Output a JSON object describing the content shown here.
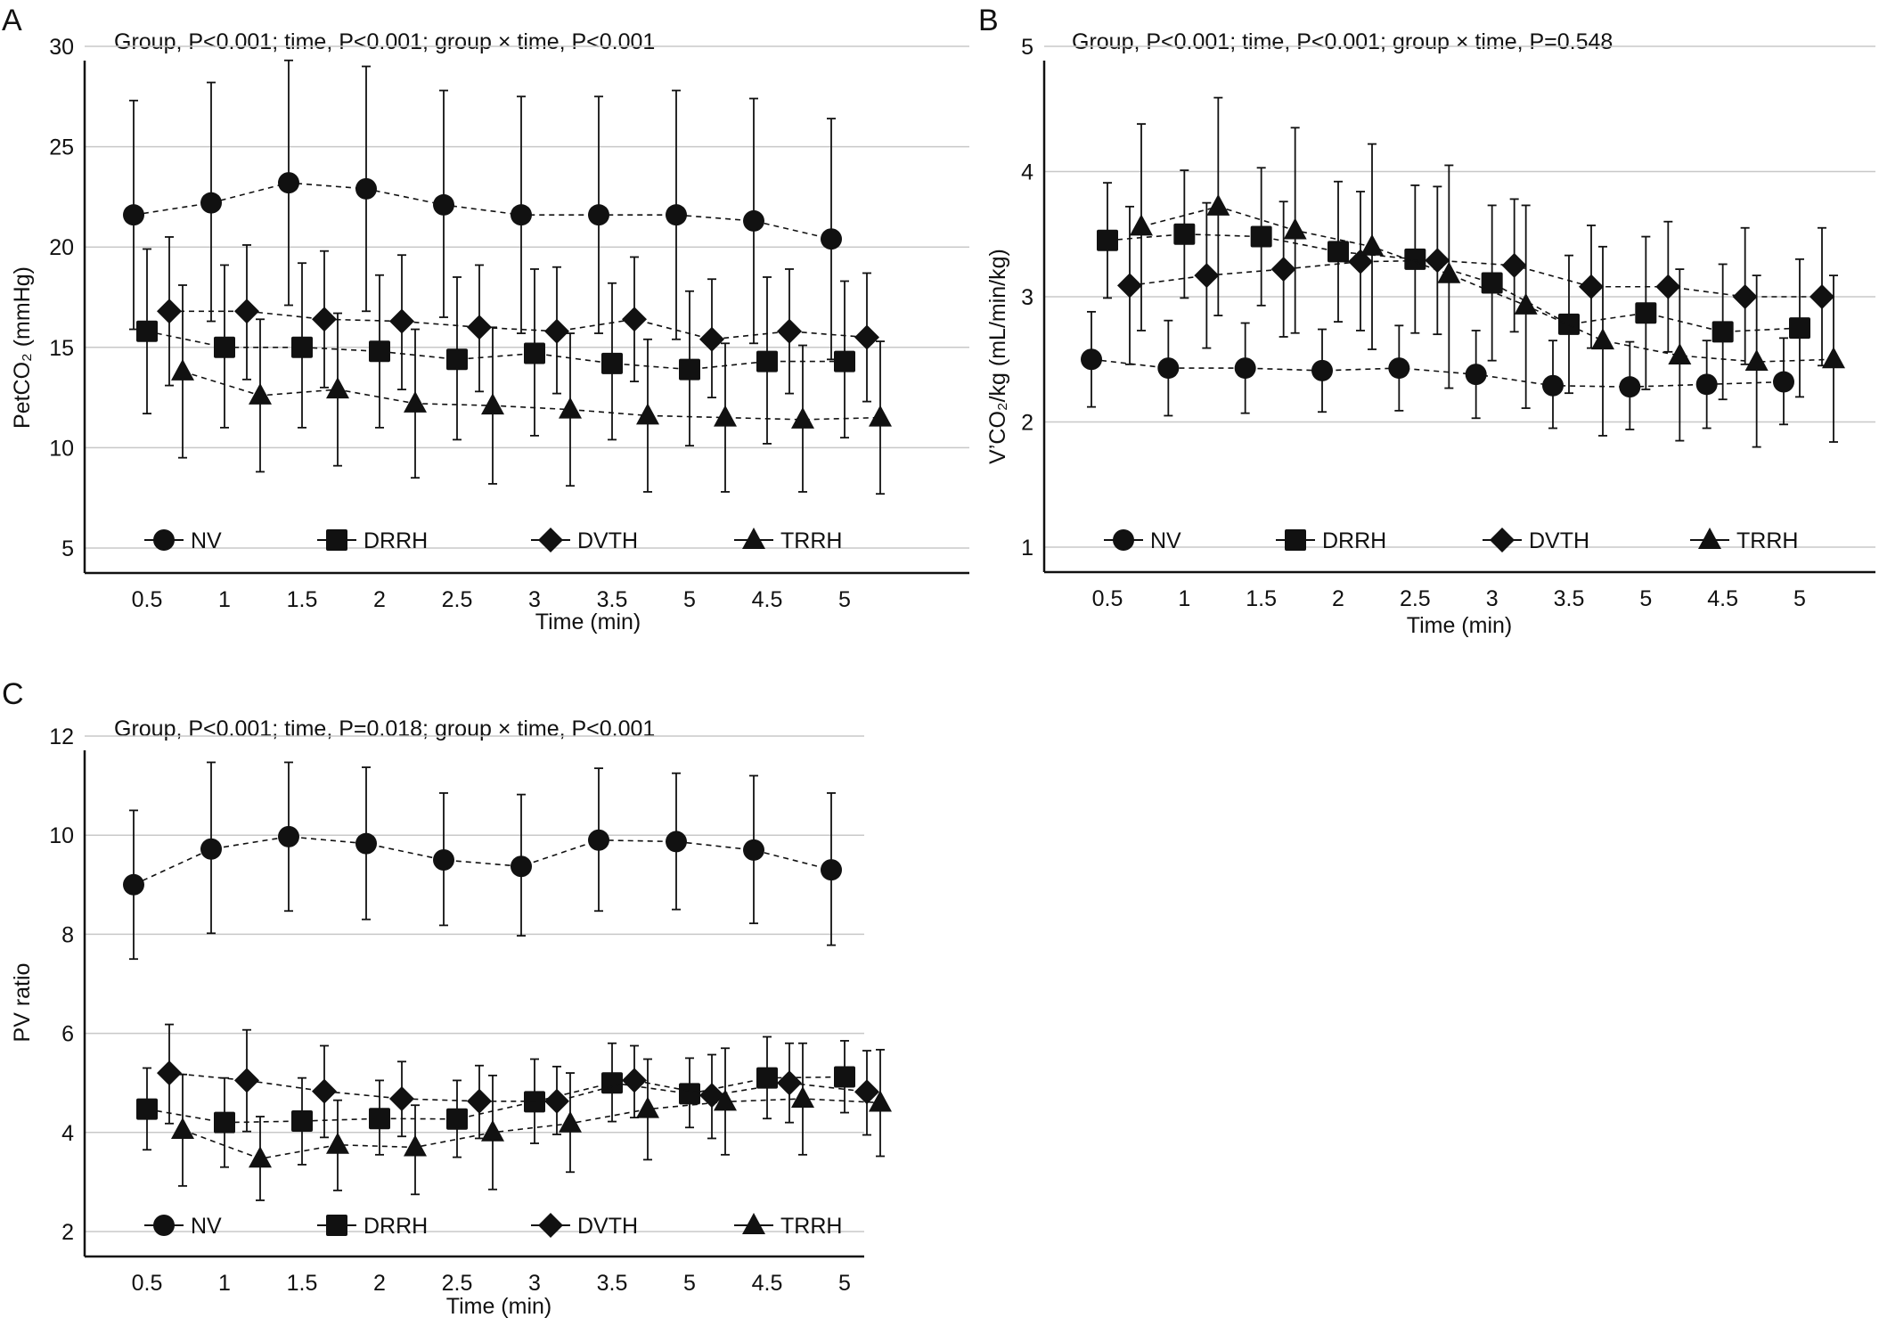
{
  "figure": {
    "series_styles": {
      "NV": "circle",
      "DRRH": "square",
      "DVTH": "diamond",
      "TRRH": "triangle"
    },
    "colors": {
      "marks": "#111111",
      "grid": "#c8c8c8",
      "background": "#ffffff"
    }
  },
  "chart_data": [
    {
      "panel": "A",
      "type": "line",
      "stats_text": "Group, P<0.001; time, P<0.001; group × time, P<0.001",
      "xlabel": "Time (min)",
      "ylabel": "PetCO₂ (mmHg)",
      "ylim": [
        5,
        30
      ],
      "yticks": [
        5,
        10,
        15,
        20,
        25,
        30
      ],
      "categories": [
        "0.5",
        "1",
        "1.5",
        "2",
        "2.5",
        "3",
        "3.5",
        "5",
        "4.5",
        "5"
      ],
      "grid": "horizontal",
      "legend_position": "bottom",
      "series": [
        {
          "name": "NV",
          "marker": "circle",
          "values": [
            21.6,
            22.2,
            23.2,
            22.9,
            22.1,
            21.6,
            21.6,
            21.6,
            21.3,
            20.4
          ],
          "lower": [
            15.9,
            16.3,
            17.1,
            16.8,
            16.5,
            15.7,
            15.7,
            15.4,
            15.2,
            14.4
          ],
          "upper": [
            27.3,
            28.2,
            29.3,
            29.0,
            27.8,
            27.5,
            27.5,
            27.8,
            27.4,
            26.4
          ]
        },
        {
          "name": "DRRH",
          "marker": "square",
          "values": [
            15.8,
            15.0,
            15.0,
            14.8,
            14.4,
            14.7,
            14.2,
            13.9,
            14.3,
            14.3
          ],
          "lower": [
            11.7,
            11.0,
            11.0,
            11.0,
            10.4,
            10.6,
            10.4,
            10.1,
            10.2,
            10.5
          ],
          "upper": [
            19.9,
            19.1,
            19.2,
            18.6,
            18.5,
            18.9,
            18.2,
            17.8,
            18.5,
            18.3
          ]
        },
        {
          "name": "DVTH",
          "marker": "diamond",
          "values": [
            16.8,
            16.8,
            16.4,
            16.3,
            16.0,
            15.8,
            16.4,
            15.4,
            15.8,
            15.5
          ],
          "lower": [
            13.1,
            13.4,
            13.0,
            12.9,
            12.8,
            12.7,
            13.3,
            12.5,
            12.7,
            12.3
          ],
          "upper": [
            20.5,
            20.1,
            19.8,
            19.6,
            19.1,
            19.0,
            19.5,
            18.4,
            18.9,
            18.7
          ]
        },
        {
          "name": "TRRH",
          "marker": "triangle",
          "values": [
            13.8,
            12.6,
            12.9,
            12.2,
            12.1,
            11.9,
            11.6,
            11.5,
            11.4,
            11.5
          ],
          "lower": [
            9.5,
            8.8,
            9.1,
            8.5,
            8.2,
            8.1,
            7.8,
            7.8,
            7.8,
            7.7
          ],
          "upper": [
            18.1,
            16.4,
            16.7,
            15.9,
            16.0,
            15.7,
            15.4,
            15.2,
            15.1,
            15.3
          ]
        }
      ]
    },
    {
      "panel": "B",
      "type": "line",
      "stats_text": "Group, P<0.001; time, P<0.001; group × time, P=0.548",
      "xlabel": "Time (min)",
      "ylabel": "V’CO₂/kg (mL/min/kg)",
      "ylim": [
        1,
        5
      ],
      "yticks": [
        1,
        2,
        3,
        4,
        5
      ],
      "categories": [
        "0.5",
        "1",
        "1.5",
        "2",
        "2.5",
        "3",
        "3.5",
        "5",
        "4.5",
        "5"
      ],
      "grid": "horizontal",
      "legend_position": "bottom",
      "series": [
        {
          "name": "NV",
          "marker": "circle",
          "values": [
            2.5,
            2.43,
            2.43,
            2.41,
            2.43,
            2.38,
            2.29,
            2.28,
            2.3,
            2.32
          ],
          "lower": [
            2.12,
            2.05,
            2.07,
            2.08,
            2.09,
            2.03,
            1.95,
            1.94,
            1.95,
            1.98
          ],
          "upper": [
            2.88,
            2.81,
            2.79,
            2.74,
            2.77,
            2.73,
            2.65,
            2.64,
            2.65,
            2.67
          ]
        },
        {
          "name": "DRRH",
          "marker": "square",
          "values": [
            3.45,
            3.5,
            3.48,
            3.36,
            3.3,
            3.11,
            2.78,
            2.87,
            2.72,
            2.75
          ],
          "lower": [
            2.99,
            2.99,
            2.93,
            2.8,
            2.71,
            2.49,
            2.23,
            2.26,
            2.18,
            2.2
          ],
          "upper": [
            3.91,
            4.01,
            4.03,
            3.92,
            3.89,
            3.73,
            3.33,
            3.48,
            3.26,
            3.3
          ]
        },
        {
          "name": "DVTH",
          "marker": "diamond",
          "values": [
            3.09,
            3.17,
            3.22,
            3.28,
            3.29,
            3.25,
            3.08,
            3.08,
            3.0,
            3.0
          ],
          "lower": [
            2.46,
            2.59,
            2.68,
            2.73,
            2.7,
            2.72,
            2.59,
            2.56,
            2.46,
            2.45
          ],
          "upper": [
            3.72,
            3.75,
            3.76,
            3.84,
            3.88,
            3.78,
            3.57,
            3.6,
            3.55,
            3.55
          ]
        },
        {
          "name": "TRRH",
          "marker": "triangle",
          "values": [
            3.56,
            3.72,
            3.53,
            3.4,
            3.18,
            2.93,
            2.65,
            2.53,
            2.48,
            2.5
          ],
          "lower": [
            2.73,
            2.85,
            2.71,
            2.58,
            2.27,
            2.11,
            1.89,
            1.85,
            1.8,
            1.84
          ],
          "upper": [
            4.38,
            4.59,
            4.35,
            4.22,
            4.05,
            3.73,
            3.4,
            3.22,
            3.17,
            3.17
          ]
        }
      ]
    },
    {
      "panel": "C",
      "type": "line",
      "stats_text": "Group, P<0.001; time, P=0.018; group × time, P<0.001",
      "xlabel": "Time (min)",
      "ylabel": "PV ratio",
      "ylim": [
        2,
        12
      ],
      "yticks": [
        2,
        4,
        6,
        8,
        10,
        12
      ],
      "categories": [
        "0.5",
        "1",
        "1.5",
        "2",
        "2.5",
        "3",
        "3.5",
        "5",
        "4.5",
        "5"
      ],
      "grid": "horizontal",
      "legend_position": "bottom",
      "series": [
        {
          "name": "NV",
          "marker": "circle",
          "values": [
            9.0,
            9.72,
            9.97,
            9.83,
            9.5,
            9.37,
            9.9,
            9.87,
            9.7,
            9.3
          ],
          "lower": [
            7.5,
            8.02,
            8.47,
            8.3,
            8.18,
            7.97,
            8.47,
            8.5,
            8.22,
            7.78
          ],
          "upper": [
            10.5,
            11.47,
            11.47,
            11.37,
            10.85,
            10.82,
            11.35,
            11.25,
            11.2,
            10.85
          ]
        },
        {
          "name": "DRRH",
          "marker": "square",
          "values": [
            4.47,
            4.2,
            4.23,
            4.28,
            4.27,
            4.62,
            5.0,
            4.78,
            5.1,
            5.12
          ],
          "lower": [
            3.65,
            3.3,
            3.35,
            3.55,
            3.5,
            3.78,
            4.22,
            4.1,
            4.28,
            4.4
          ],
          "upper": [
            5.3,
            5.1,
            5.1,
            5.05,
            5.05,
            5.48,
            5.8,
            5.5,
            5.93,
            5.85
          ]
        },
        {
          "name": "DVTH",
          "marker": "diamond",
          "values": [
            5.2,
            5.05,
            4.83,
            4.68,
            4.63,
            4.63,
            5.05,
            4.75,
            5.0,
            4.82
          ],
          "lower": [
            4.18,
            4.02,
            3.9,
            3.92,
            3.88,
            3.96,
            4.3,
            3.88,
            4.2,
            3.95
          ],
          "upper": [
            6.18,
            6.07,
            5.75,
            5.43,
            5.35,
            5.33,
            5.75,
            5.57,
            5.8,
            5.65
          ]
        },
        {
          "name": "TRRH",
          "marker": "triangle",
          "values": [
            4.05,
            3.47,
            3.75,
            3.7,
            4.0,
            4.18,
            4.47,
            4.62,
            4.68,
            4.6
          ],
          "lower": [
            2.92,
            2.63,
            2.83,
            2.75,
            2.85,
            3.2,
            3.45,
            3.55,
            3.55,
            3.52
          ],
          "upper": [
            5.17,
            4.32,
            4.65,
            4.55,
            5.15,
            5.2,
            5.48,
            5.7,
            5.8,
            5.67
          ]
        }
      ]
    }
  ]
}
